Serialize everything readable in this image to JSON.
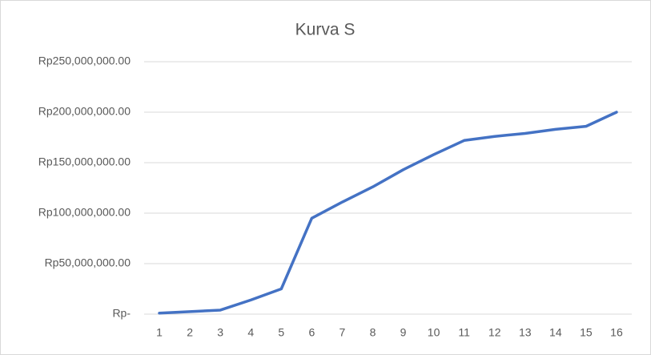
{
  "chart_data": {
    "type": "line",
    "title": "Kurva S",
    "categories": [
      "1",
      "2",
      "3",
      "4",
      "5",
      "6",
      "7",
      "8",
      "9",
      "10",
      "11",
      "12",
      "13",
      "14",
      "15",
      "16"
    ],
    "series": [
      {
        "name": "Kurva S",
        "color": "#4472c4",
        "values": [
          1000000,
          2500000,
          4000000,
          14000000,
          25000000,
          95000000,
          111000000,
          126000000,
          143000000,
          158000000,
          172000000,
          176000000,
          179000000,
          183000000,
          186000000,
          200000000
        ]
      }
    ],
    "ylim": [
      0,
      250000000
    ],
    "yticks": [
      {
        "value": 0,
        "label": "Rp-"
      },
      {
        "value": 50000000,
        "label": "Rp50,000,000.00"
      },
      {
        "value": 100000000,
        "label": "Rp100,000,000.00"
      },
      {
        "value": 150000000,
        "label": "Rp150,000,000.00"
      },
      {
        "value": 200000000,
        "label": "Rp200,000,000.00"
      },
      {
        "value": 250000000,
        "label": "Rp250,000,000.00"
      }
    ],
    "grid": true
  }
}
